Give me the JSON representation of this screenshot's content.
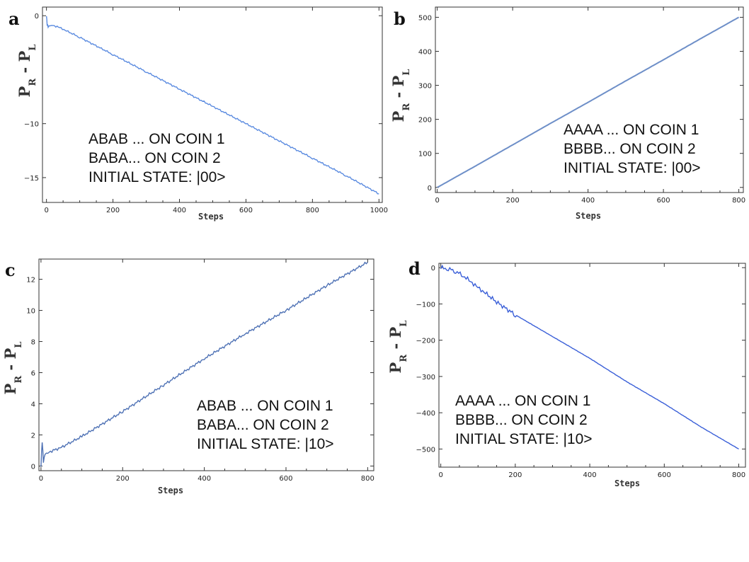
{
  "chart_data": [
    {
      "type": "line",
      "panel_label": "a",
      "xlabel": "Steps",
      "ylabel": "P_R - P_L",
      "xlim": [
        -12,
        1010
      ],
      "ylim": [
        -17.3,
        0.8
      ],
      "xticks": [
        0,
        200,
        400,
        600,
        800,
        1000
      ],
      "yticks": [
        0,
        -10,
        -15
      ],
      "annotation": [
        "ABAB ... ON COIN 1",
        "BABA... ON COIN 2",
        "INITIAL STATE: |00>"
      ],
      "color": "#5b8be0",
      "x": [
        0,
        2,
        5,
        10,
        20,
        40,
        60,
        100,
        200,
        300,
        400,
        500,
        600,
        700,
        800,
        900,
        1000
      ],
      "y": [
        0,
        -0.8,
        -1.0,
        -0.9,
        -0.9,
        -1.1,
        -1.4,
        -2.0,
        -3.6,
        -5.2,
        -6.8,
        -8.4,
        -10.0,
        -11.6,
        -13.2,
        -14.8,
        -16.5
      ]
    },
    {
      "type": "line",
      "panel_label": "b",
      "xlabel": "Steps",
      "ylabel": "P_R - P_L",
      "xlim": [
        -5,
        812
      ],
      "ylim": [
        -15,
        530
      ],
      "xticks": [
        0,
        200,
        400,
        600,
        800
      ],
      "yticks": [
        0,
        100,
        200,
        300,
        400,
        500
      ],
      "annotation": [
        "AAAA ... ON COIN 1",
        "BBBB... ON COIN 2",
        "INITIAL STATE: |00>"
      ],
      "color": "#6e8fc8",
      "x": [
        0,
        100,
        200,
        300,
        400,
        500,
        600,
        700,
        800
      ],
      "y": [
        0,
        62,
        125,
        188,
        250,
        313,
        375,
        438,
        500
      ]
    },
    {
      "type": "line",
      "panel_label": "c",
      "xlabel": "Steps",
      "ylabel": "P_R - P_L",
      "xlim": [
        -5,
        815
      ],
      "ylim": [
        -0.3,
        13.3
      ],
      "xticks": [
        0,
        200,
        400,
        600,
        800
      ],
      "yticks": [
        0,
        2,
        4,
        6,
        8,
        10,
        12
      ],
      "annotation": [
        "ABAB ... ON COIN 1",
        "BABA... ON COIN 2",
        "INITIAL STATE: |10>"
      ],
      "color": "#4f72b5",
      "x": [
        0,
        3,
        6,
        10,
        20,
        50,
        100,
        200,
        300,
        400,
        500,
        600,
        700,
        800
      ],
      "y": [
        0,
        1.6,
        0.3,
        0.8,
        0.9,
        1.2,
        1.9,
        3.5,
        5.2,
        6.9,
        8.5,
        10.0,
        11.6,
        13.1
      ]
    },
    {
      "type": "line",
      "panel_label": "d",
      "xlabel": "Steps",
      "ylabel": "P_R - P_L",
      "xlim": [
        -5,
        818
      ],
      "ylim": [
        -550,
        12
      ],
      "xticks": [
        0,
        200,
        400,
        600,
        800
      ],
      "yticks": [
        0,
        -100,
        -200,
        -300,
        -400,
        -500
      ],
      "annotation": [
        "AAAA ... ON COIN 1",
        "BBBB... ON COIN 2",
        "INITIAL STATE: |10>"
      ],
      "color": "#3a5fd8",
      "x": [
        0,
        20,
        40,
        60,
        80,
        100,
        120,
        150,
        200,
        300,
        400,
        500,
        600,
        700,
        800
      ],
      "y": [
        0,
        -3,
        -10,
        -22,
        -38,
        -55,
        -70,
        -95,
        -130,
        -190,
        -250,
        -315,
        -375,
        -440,
        -500
      ]
    }
  ]
}
